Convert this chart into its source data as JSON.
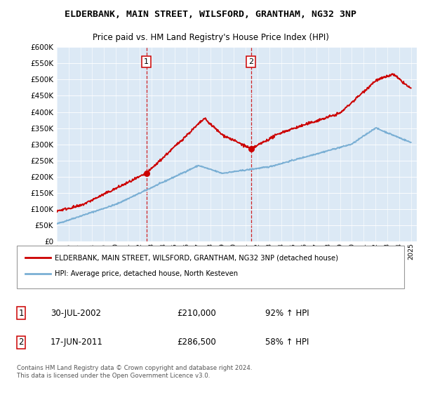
{
  "title": "ELDERBANK, MAIN STREET, WILSFORD, GRANTHAM, NG32 3NP",
  "subtitle": "Price paid vs. HM Land Registry's House Price Index (HPI)",
  "plot_bg_color": "#dce9f5",
  "sale1_date": "30-JUL-2002",
  "sale1_price": 210000,
  "sale1_hpi_pct": "92% ↑ HPI",
  "sale2_date": "17-JUN-2011",
  "sale2_price": 286500,
  "sale2_hpi_pct": "58% ↑ HPI",
  "legend_label1": "ELDERBANK, MAIN STREET, WILSFORD, GRANTHAM, NG32 3NP (detached house)",
  "legend_label2": "HPI: Average price, detached house, North Kesteven",
  "footer": "Contains HM Land Registry data © Crown copyright and database right 2024.\nThis data is licensed under the Open Government Licence v3.0.",
  "line1_color": "#cc0000",
  "line2_color": "#7aafd4",
  "vline_color": "#cc0000",
  "ylim_min": 0,
  "ylim_max": 600000,
  "ytick_step": 50000,
  "xmin": 1995,
  "xmax": 2025.5,
  "sale1_year": 2002.583,
  "sale2_year": 2011.458
}
